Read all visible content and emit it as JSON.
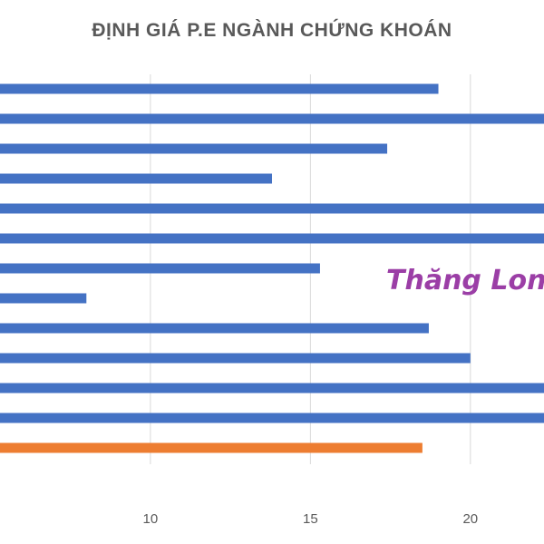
{
  "chart_data": {
    "type": "bar",
    "orientation": "horizontal",
    "title": "ĐỊNH GIÁ P.E NGÀNH CHỨNG KHOÁN",
    "xlabel": "",
    "ylabel": "",
    "xlim": [
      5.3,
      22.3
    ],
    "xticks": [
      10,
      15,
      20
    ],
    "grid": true,
    "values": [
      19.0,
      24.0,
      17.4,
      13.8,
      24.0,
      24.0,
      15.3,
      8.0,
      18.7,
      20.0,
      24.0,
      24.0,
      18.5
    ],
    "highlight_index": 12,
    "colors": {
      "bar": "#4472c4",
      "highlight": "#ed7d31",
      "grid": "#d9d9d9",
      "tick": "#595959"
    }
  },
  "watermark": "Thăng Long"
}
